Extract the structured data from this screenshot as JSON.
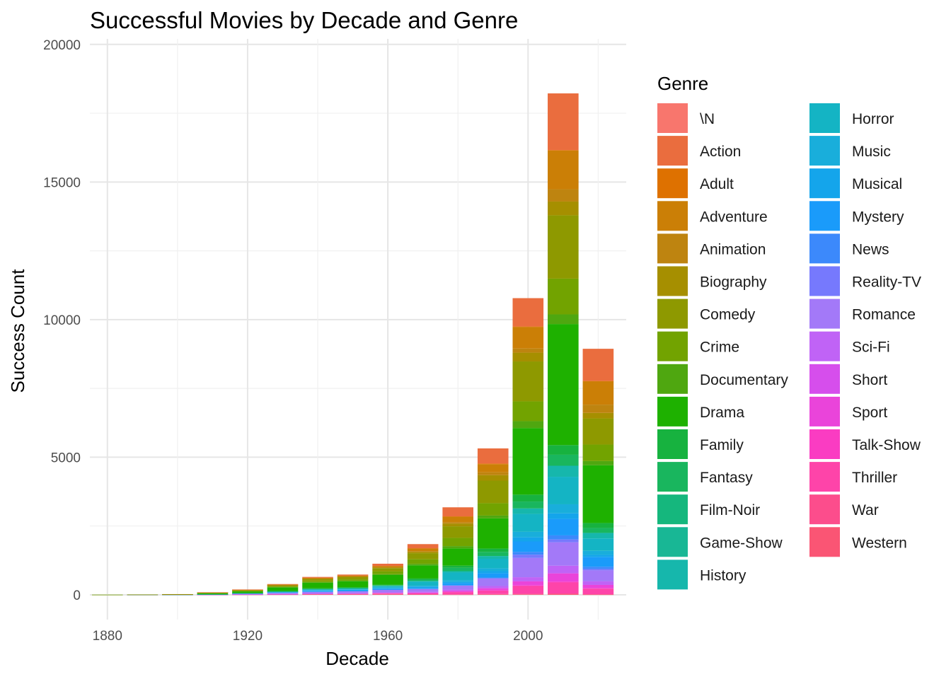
{
  "chart_data": {
    "type": "bar",
    "stacked": true,
    "title": "Successful Movies by Decade and Genre",
    "xlabel": "Decade",
    "ylabel": "Success Count",
    "xlim": [
      1875,
      2028
    ],
    "ylim": [
      -900,
      20200
    ],
    "x_ticks": [
      1880,
      1920,
      1960,
      2000
    ],
    "y_ticks": [
      0,
      5000,
      10000,
      15000,
      20000
    ],
    "bar_width_years": 8.8,
    "grid": true,
    "legend": {
      "title": "Genre",
      "position": "right",
      "columns": 2
    },
    "genres": [
      {
        "name": "\\N",
        "color": "#F8766D"
      },
      {
        "name": "Action",
        "color": "#EA6D3E"
      },
      {
        "name": "Adult",
        "color": "#DE7100"
      },
      {
        "name": "Adventure",
        "color": "#CB7F06"
      },
      {
        "name": "Animation",
        "color": "#BE8410"
      },
      {
        "name": "Biography",
        "color": "#A68F00"
      },
      {
        "name": "Comedy",
        "color": "#8E9900"
      },
      {
        "name": "Crime",
        "color": "#72A300"
      },
      {
        "name": "Documentary",
        "color": "#4FA710"
      },
      {
        "name": "Drama",
        "color": "#1EB100"
      },
      {
        "name": "Family",
        "color": "#17B23F"
      },
      {
        "name": "Fantasy",
        "color": "#19B65E"
      },
      {
        "name": "Film-Noir",
        "color": "#15B77D"
      },
      {
        "name": "Game-Show",
        "color": "#18B795"
      },
      {
        "name": "History",
        "color": "#16B7AC"
      },
      {
        "name": "Horror",
        "color": "#14B4C4"
      },
      {
        "name": "Music",
        "color": "#19AEDB"
      },
      {
        "name": "Musical",
        "color": "#14A5EB"
      },
      {
        "name": "Mystery",
        "color": "#1A9BFA"
      },
      {
        "name": "News",
        "color": "#3C89FB"
      },
      {
        "name": "Reality-TV",
        "color": "#7679FD"
      },
      {
        "name": "Romance",
        "color": "#A379F8"
      },
      {
        "name": "Sci-Fi",
        "color": "#C063F6"
      },
      {
        "name": "Short",
        "color": "#D64EEC"
      },
      {
        "name": "Sport",
        "color": "#EA44DA"
      },
      {
        "name": "Talk-Show",
        "color": "#FA3CC2"
      },
      {
        "name": "Thriller",
        "color": "#FE44A9"
      },
      {
        "name": "War",
        "color": "#FC4D8C"
      },
      {
        "name": "Western",
        "color": "#FA5574"
      }
    ],
    "decades": [
      1880,
      1890,
      1900,
      1910,
      1920,
      1930,
      1940,
      1950,
      1960,
      1970,
      1980,
      1990,
      2000,
      2010,
      2020
    ],
    "series": [
      {
        "name": "Western",
        "values": [
          0,
          1,
          2,
          4,
          8,
          12,
          18,
          20,
          22,
          15,
          10,
          15,
          20,
          25,
          10
        ]
      },
      {
        "name": "War",
        "values": [
          0,
          0,
          1,
          2,
          4,
          6,
          12,
          10,
          10,
          8,
          10,
          15,
          20,
          25,
          15
        ]
      },
      {
        "name": "Thriller",
        "values": [
          0,
          0,
          1,
          2,
          3,
          5,
          6,
          8,
          20,
          30,
          80,
          130,
          280,
          400,
          200
        ]
      },
      {
        "name": "Talk-Show",
        "values": [
          0,
          0,
          0,
          0,
          0,
          0,
          0,
          0,
          0,
          0,
          0,
          0,
          20,
          30,
          15
        ]
      },
      {
        "name": "Sport",
        "values": [
          0,
          0,
          0,
          1,
          2,
          4,
          6,
          10,
          18,
          30,
          50,
          80,
          150,
          300,
          120
        ]
      },
      {
        "name": "Short",
        "values": [
          0,
          0,
          0,
          0,
          0,
          0,
          0,
          0,
          0,
          0,
          0,
          0,
          0,
          0,
          0
        ]
      },
      {
        "name": "Sci-Fi",
        "values": [
          0,
          0,
          0,
          1,
          2,
          4,
          6,
          10,
          20,
          30,
          40,
          80,
          150,
          280,
          130
        ]
      },
      {
        "name": "Romance",
        "values": [
          0,
          2,
          4,
          8,
          25,
          40,
          60,
          70,
          90,
          100,
          150,
          280,
          700,
          850,
          400
        ]
      },
      {
        "name": "Reality-TV",
        "values": [
          0,
          0,
          0,
          0,
          0,
          0,
          0,
          0,
          0,
          0,
          0,
          0,
          120,
          100,
          50
        ]
      },
      {
        "name": "News",
        "values": [
          0,
          0,
          0,
          0,
          0,
          0,
          0,
          0,
          0,
          0,
          0,
          30,
          100,
          150,
          80
        ]
      },
      {
        "name": "Mystery",
        "values": [
          0,
          0,
          0,
          2,
          5,
          15,
          25,
          25,
          30,
          40,
          80,
          150,
          380,
          600,
          350
        ]
      },
      {
        "name": "Musical",
        "values": [
          0,
          0,
          0,
          1,
          5,
          20,
          30,
          35,
          40,
          45,
          50,
          80,
          150,
          200,
          80
        ]
      },
      {
        "name": "Music",
        "values": [
          0,
          0,
          0,
          0,
          2,
          5,
          10,
          12,
          15,
          30,
          60,
          100,
          200,
          330,
          150
        ]
      },
      {
        "name": "Horror",
        "values": [
          0,
          0,
          1,
          2,
          5,
          10,
          20,
          25,
          50,
          150,
          280,
          350,
          650,
          1000,
          450
        ]
      },
      {
        "name": "History",
        "values": [
          0,
          0,
          0,
          1,
          2,
          5,
          10,
          10,
          15,
          25,
          50,
          100,
          200,
          400,
          200
        ]
      },
      {
        "name": "Game-Show",
        "values": [
          0,
          0,
          0,
          0,
          0,
          0,
          0,
          0,
          0,
          0,
          0,
          0,
          0,
          0,
          0
        ]
      },
      {
        "name": "Film-Noir",
        "values": [
          0,
          0,
          0,
          0,
          0,
          2,
          15,
          10,
          0,
          0,
          0,
          0,
          0,
          0,
          0
        ]
      },
      {
        "name": "Fantasy",
        "values": [
          0,
          0,
          1,
          2,
          4,
          6,
          10,
          15,
          20,
          50,
          120,
          150,
          250,
          400,
          180
        ]
      },
      {
        "name": "Family",
        "values": [
          0,
          0,
          0,
          1,
          2,
          5,
          8,
          12,
          20,
          40,
          80,
          120,
          250,
          350,
          180
        ]
      },
      {
        "name": "Drama",
        "values": [
          3,
          5,
          8,
          35,
          60,
          130,
          200,
          220,
          350,
          480,
          630,
          1100,
          2420,
          4400,
          2100
        ]
      },
      {
        "name": "Documentary",
        "values": [
          0,
          0,
          1,
          2,
          5,
          10,
          20,
          20,
          30,
          50,
          80,
          100,
          250,
          350,
          150
        ]
      },
      {
        "name": "Crime",
        "values": [
          0,
          0,
          1,
          3,
          10,
          20,
          40,
          50,
          100,
          170,
          300,
          450,
          720,
          1300,
          600
        ]
      },
      {
        "name": "Comedy",
        "values": [
          2,
          3,
          5,
          20,
          30,
          50,
          80,
          90,
          120,
          220,
          420,
          820,
          1450,
          2300,
          950
        ]
      },
      {
        "name": "Biography",
        "values": [
          0,
          0,
          0,
          1,
          3,
          5,
          10,
          10,
          20,
          50,
          100,
          200,
          320,
          500,
          200
        ]
      },
      {
        "name": "Animation",
        "values": [
          0,
          0,
          0,
          0,
          1,
          3,
          5,
          5,
          10,
          20,
          50,
          100,
          150,
          450,
          300
        ]
      },
      {
        "name": "Adventure",
        "values": [
          0,
          0,
          1,
          2,
          10,
          20,
          30,
          35,
          50,
          100,
          200,
          300,
          780,
          1400,
          850
        ]
      },
      {
        "name": "Adult",
        "values": [
          0,
          0,
          0,
          0,
          0,
          0,
          0,
          0,
          0,
          10,
          10,
          20,
          20,
          20,
          10
        ]
      },
      {
        "name": "Action",
        "values": [
          0,
          0,
          0,
          2,
          6,
          15,
          30,
          35,
          80,
          150,
          330,
          550,
          1030,
          2060,
          1170
        ]
      },
      {
        "name": "\\N",
        "values": [
          0,
          0,
          0,
          0,
          0,
          0,
          0,
          0,
          0,
          0,
          0,
          0,
          0,
          0,
          0
        ]
      }
    ]
  }
}
